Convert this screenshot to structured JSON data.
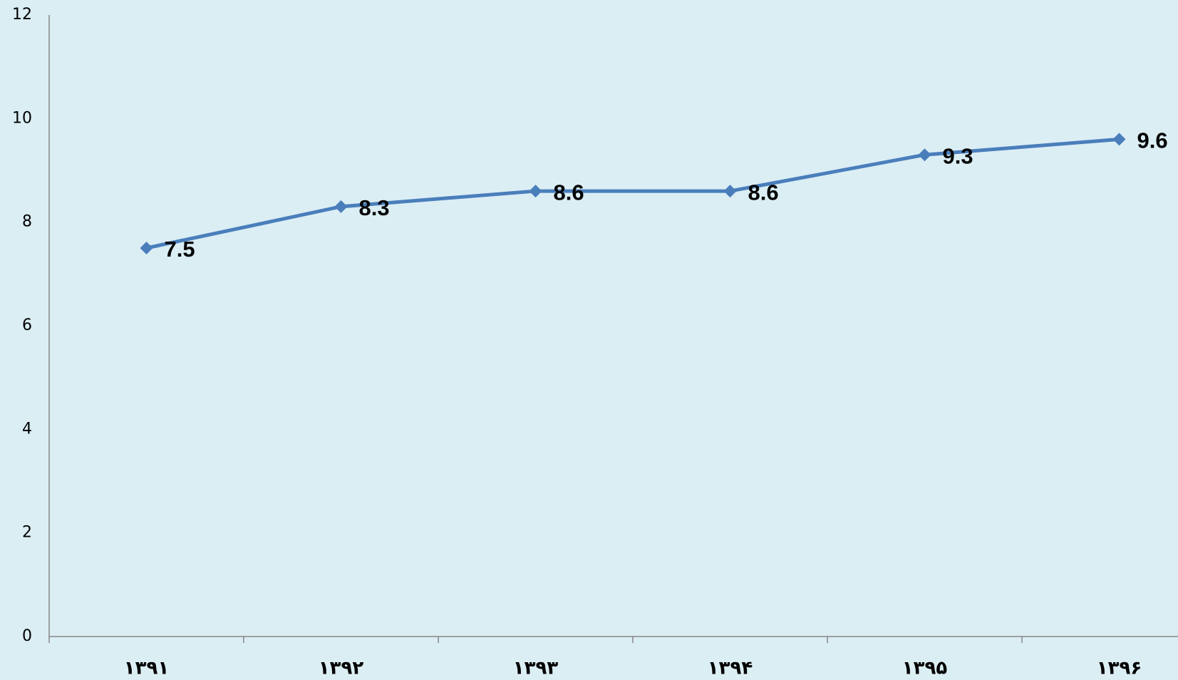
{
  "chart_data": {
    "type": "line",
    "categories": [
      "۱۳۹۱",
      "۱۳۹۲",
      "۱۳۹۳",
      "۱۳۹۴",
      "۱۳۹۵",
      "۱۳۹۶"
    ],
    "values": [
      7.5,
      8.3,
      8.6,
      8.6,
      9.3,
      9.6
    ],
    "color": "#4a7ebb",
    "ylim": [
      0,
      12
    ],
    "yticks": [
      0,
      2,
      4,
      6,
      8,
      10,
      12
    ],
    "grid": false
  }
}
